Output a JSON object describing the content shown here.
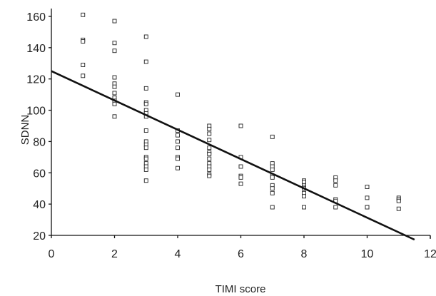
{
  "chart_data": {
    "type": "scatter",
    "title": "",
    "xlabel": "TIMI score",
    "ylabel": "SDNN",
    "xlim": [
      0,
      12
    ],
    "ylim": [
      20,
      165
    ],
    "xticks": [
      0,
      2,
      4,
      6,
      8,
      10,
      12
    ],
    "yticks": [
      20,
      40,
      60,
      80,
      100,
      120,
      140,
      160
    ],
    "grid": false,
    "legend": "none",
    "marker": "open-square",
    "colors": {
      "points": "#222222",
      "line": "#111111",
      "axis": "#111111"
    },
    "series": [
      {
        "points": [
          [
            1,
            161
          ],
          [
            1,
            145
          ],
          [
            1,
            144
          ],
          [
            1,
            129
          ],
          [
            1,
            122
          ],
          [
            2,
            157
          ],
          [
            2,
            143
          ],
          [
            2,
            138
          ],
          [
            2,
            121
          ],
          [
            2,
            117
          ],
          [
            2,
            115
          ],
          [
            2,
            111
          ],
          [
            2,
            108
          ],
          [
            2,
            106
          ],
          [
            2,
            104
          ],
          [
            2,
            96
          ],
          [
            3,
            147
          ],
          [
            3,
            131
          ],
          [
            3,
            114
          ],
          [
            3,
            105
          ],
          [
            3,
            104
          ],
          [
            3,
            100
          ],
          [
            3,
            98
          ],
          [
            3,
            96
          ],
          [
            3,
            87
          ],
          [
            3,
            80
          ],
          [
            3,
            78
          ],
          [
            3,
            76
          ],
          [
            3,
            70
          ],
          [
            3,
            69
          ],
          [
            3,
            66
          ],
          [
            3,
            64
          ],
          [
            3,
            62
          ],
          [
            3,
            55
          ],
          [
            4,
            110
          ],
          [
            4,
            87
          ],
          [
            4,
            84
          ],
          [
            4,
            80
          ],
          [
            4,
            76
          ],
          [
            4,
            70
          ],
          [
            4,
            69
          ],
          [
            4,
            63
          ],
          [
            5,
            90
          ],
          [
            5,
            88
          ],
          [
            5,
            85
          ],
          [
            5,
            81
          ],
          [
            5,
            76
          ],
          [
            5,
            73
          ],
          [
            5,
            72
          ],
          [
            5,
            69
          ],
          [
            5,
            66
          ],
          [
            5,
            64
          ],
          [
            5,
            62
          ],
          [
            5,
            59
          ],
          [
            5,
            58
          ],
          [
            6,
            90
          ],
          [
            6,
            70
          ],
          [
            6,
            64
          ],
          [
            6,
            58
          ],
          [
            6,
            57
          ],
          [
            6,
            53
          ],
          [
            7,
            83
          ],
          [
            7,
            66
          ],
          [
            7,
            64
          ],
          [
            7,
            62
          ],
          [
            7,
            58
          ],
          [
            7,
            57
          ],
          [
            7,
            52
          ],
          [
            7,
            50
          ],
          [
            7,
            47
          ],
          [
            7,
            38
          ],
          [
            8,
            55
          ],
          [
            8,
            54
          ],
          [
            8,
            52
          ],
          [
            8,
            51
          ],
          [
            8,
            50
          ],
          [
            8,
            47
          ],
          [
            8,
            45
          ],
          [
            8,
            38
          ],
          [
            9,
            57
          ],
          [
            9,
            55
          ],
          [
            9,
            52
          ],
          [
            9,
            43
          ],
          [
            9,
            42
          ],
          [
            9,
            38
          ],
          [
            10,
            51
          ],
          [
            10,
            44
          ],
          [
            10,
            38
          ],
          [
            10,
            38
          ],
          [
            11,
            44
          ],
          [
            11,
            43
          ],
          [
            11,
            42
          ],
          [
            11,
            37
          ]
        ]
      }
    ],
    "trendline": {
      "x": [
        0,
        11.5
      ],
      "y": [
        125,
        17
      ]
    }
  }
}
